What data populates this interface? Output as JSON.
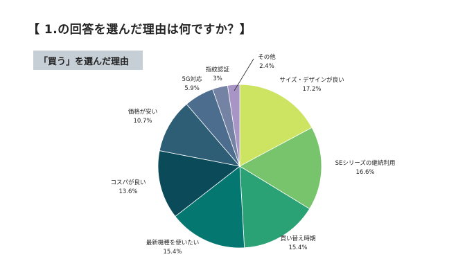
{
  "header": {
    "title": "【 1.の回答を選んだ理由は何ですか？】",
    "subtitle": "「買う」を選んだ理由"
  },
  "chart_data": {
    "type": "pie",
    "title": "「買う」を選んだ理由",
    "start": "12 o'clock, clockwise",
    "slices": [
      {
        "label": "サイズ・デザインが良い",
        "value": 17.2,
        "display": "17.2%",
        "color": "#cde362"
      },
      {
        "label": "SEシリーズの継続利用",
        "value": 16.6,
        "display": "16.6%",
        "color": "#78c46c"
      },
      {
        "label": "買い替え時期",
        "value": 15.4,
        "display": "15.4%",
        "color": "#2ba176"
      },
      {
        "label": "最新機種を使いたい",
        "value": 15.4,
        "display": "15.4%",
        "color": "#047770"
      },
      {
        "label": "コスパが良い",
        "value": 13.6,
        "display": "13.6%",
        "color": "#0a4a59"
      },
      {
        "label": "価格が安い",
        "value": 10.7,
        "display": "10.7%",
        "color": "#2e5e76"
      },
      {
        "label": "5G対応",
        "value": 5.9,
        "display": "5.9%",
        "color": "#4d6d8e"
      },
      {
        "label": "指紋認証",
        "value": 3,
        "display": "3%",
        "color": "#7482a4"
      },
      {
        "label": "その他",
        "value": 2.4,
        "display": "2.4%",
        "color": "#a895c6"
      }
    ]
  }
}
